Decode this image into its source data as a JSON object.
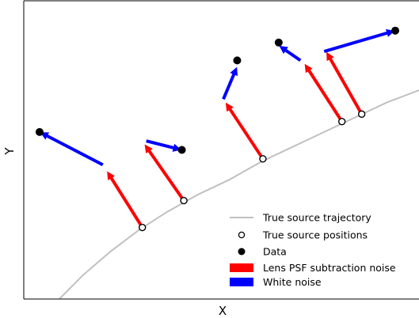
{
  "chart_data": {
    "type": "scatter",
    "title": "",
    "xlabel": "X",
    "ylabel": "Y",
    "xlim": [
      0,
      100
    ],
    "ylim": [
      0,
      100
    ],
    "show_ticks": false,
    "grid": false,
    "legend_placement": "bottom-right",
    "colors": {
      "trajectory": "#c0c0c0",
      "psf_noise": "#ff0000",
      "white_noise": "#0000ff",
      "marker": "#000000"
    },
    "trajectory": {
      "name": "True source trajectory",
      "x": [
        9,
        15,
        22,
        29,
        36,
        44,
        52,
        60,
        68,
        76,
        84,
        92,
        100
      ],
      "y": [
        0,
        8,
        16,
        23,
        29,
        35,
        40,
        46,
        51,
        56,
        61,
        66,
        70
      ]
    },
    "true_positions": {
      "name": "True source positions",
      "points": [
        [
          30,
          24
        ],
        [
          40.5,
          33
        ],
        [
          60.5,
          47
        ],
        [
          80.5,
          59.5
        ],
        [
          85.5,
          62
        ]
      ]
    },
    "lens_psf_noise": {
      "name": "Lens PSF subtraction noise",
      "vectors": [
        {
          "x0": 30,
          "y0": 24,
          "x1": 21,
          "y1": 43
        },
        {
          "x0": 40.5,
          "y0": 33,
          "x1": 30.5,
          "y1": 52
        },
        {
          "x0": 60.5,
          "y0": 47,
          "x1": 51,
          "y1": 66
        },
        {
          "x0": 80.5,
          "y0": 59.5,
          "x1": 71,
          "y1": 79
        },
        {
          "x0": 85.5,
          "y0": 62,
          "x1": 76.5,
          "y1": 83
        }
      ]
    },
    "white_noise": {
      "name": "White noise",
      "vectors": [
        {
          "x0": 20,
          "y0": 45,
          "x1": 4,
          "y1": 56
        },
        {
          "x0": 31,
          "y0": 53,
          "x1": 40,
          "y1": 50
        },
        {
          "x0": 50.5,
          "y0": 67,
          "x1": 54,
          "y1": 78
        },
        {
          "x0": 70,
          "y0": 80,
          "x1": 64.5,
          "y1": 85
        },
        {
          "x0": 76,
          "y0": 83,
          "x1": 94,
          "y1": 90
        }
      ]
    },
    "data": {
      "name": "Data",
      "points": [
        [
          4,
          56
        ],
        [
          40,
          50
        ],
        [
          54,
          80
        ],
        [
          64.5,
          86
        ],
        [
          94,
          90
        ]
      ]
    }
  }
}
